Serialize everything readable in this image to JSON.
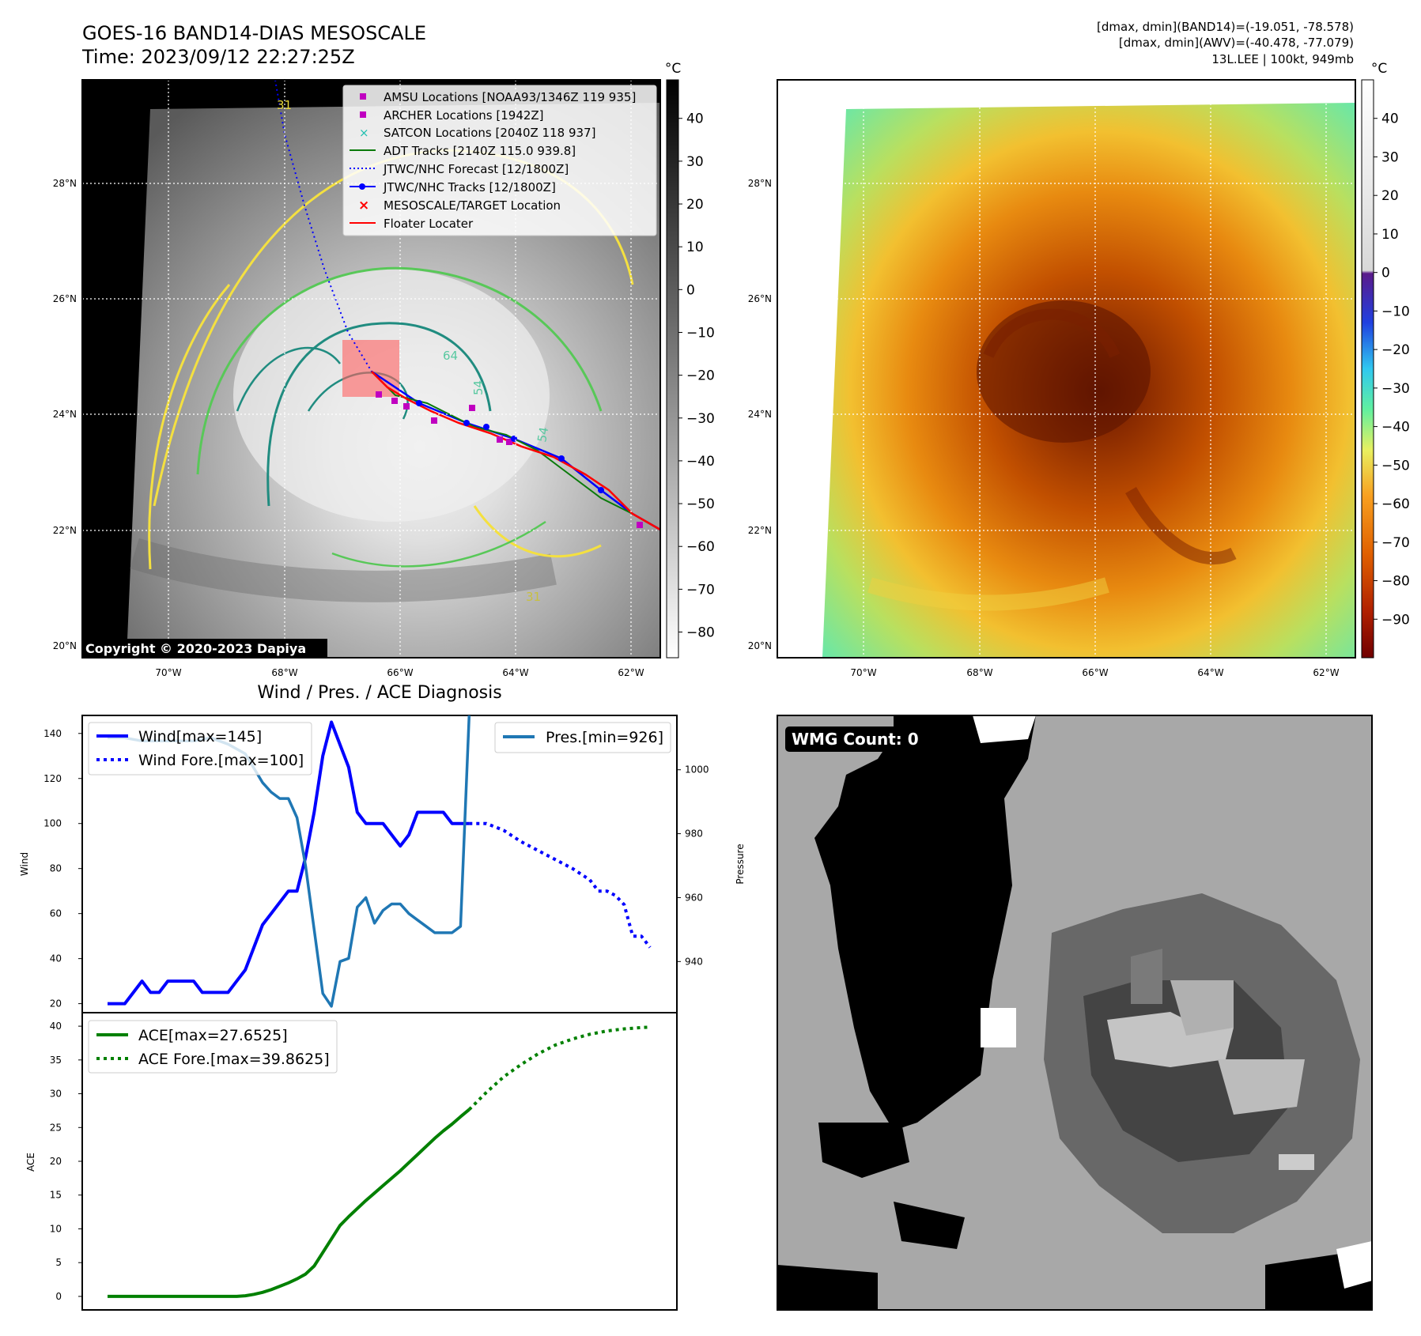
{
  "header": {
    "title": "GOES-16 BAND14-DIAS MESOSCALE",
    "time": "Time: 2023/09/12 22:27:25Z",
    "dm_band": "[dmax, dmin](BAND14)=(-19.051, -78.578)",
    "dm_awv": "[dmax, dmin](AWV)=(-40.478, -77.079)",
    "storm": "13L.LEE | 100kt, 949mb",
    "copyright": "Copyright © 2020-2023 Dapiya"
  },
  "map": {
    "lat_labels": [
      "28°N",
      "26°N",
      "24°N",
      "22°N",
      "20°N"
    ],
    "lon_labels": [
      "70°W",
      "68°W",
      "66°W",
      "64°W",
      "62°W"
    ],
    "contour_labels": [
      "31",
      "54",
      "54",
      "31",
      "64"
    ],
    "legend": [
      {
        "label": "AMSU Locations [NOAA93/1346Z 119 935]",
        "marker": "square",
        "color": "#c000c0"
      },
      {
        "label": "ARCHER Locations [1942Z]",
        "marker": "square",
        "color": "#c000c0"
      },
      {
        "label": "SATCON Locations [2040Z 118 937]",
        "marker": "x",
        "color": "#20c0b0"
      },
      {
        "label": "ADT Tracks [2140Z 115.0 939.8]",
        "marker": "line",
        "color": "#0a7a0a"
      },
      {
        "label": "JTWC/NHC Forecast [12/1800Z]",
        "marker": "dotted",
        "color": "#0000ff"
      },
      {
        "label": "JTWC/NHC Tracks [12/1800Z]",
        "marker": "line-dot",
        "color": "#0000ff"
      },
      {
        "label": "MESOSCALE/TARGET Location",
        "marker": "x",
        "color": "#ff0000"
      },
      {
        "label": "Floater Locater",
        "marker": "line",
        "color": "#ff0000"
      }
    ]
  },
  "colorbars": {
    "unit": "°C",
    "ir_ticks": [
      "40",
      "30",
      "20",
      "10",
      "0",
      "−10",
      "−20",
      "−30",
      "−40",
      "−50",
      "−60",
      "−70",
      "−80"
    ],
    "dias_ticks": [
      "40",
      "30",
      "20",
      "10",
      "0",
      "−10",
      "−20",
      "−30",
      "−40",
      "−50",
      "−60",
      "−70",
      "−80",
      "−90"
    ]
  },
  "diag": {
    "title": "Wind / Pres. / ACE Diagnosis",
    "wind_ylabel": "Wind",
    "pres_ylabel": "Pressure",
    "ace_ylabel": "ACE",
    "wind_ticks": [
      "140",
      "120",
      "100",
      "80",
      "60",
      "40",
      "20"
    ],
    "pres_ticks": [
      "1000",
      "980",
      "960",
      "940"
    ],
    "ace_ticks": [
      "40",
      "35",
      "30",
      "25",
      "20",
      "15",
      "10",
      "5",
      "0"
    ],
    "legend_wind": [
      "Wind[max=145]",
      "Wind Fore.[max=100]"
    ],
    "legend_pres": [
      "Pres.[min=926]"
    ],
    "legend_ace": [
      "ACE[max=27.6525]",
      "ACE Fore.[max=39.8625]"
    ]
  },
  "wmg": {
    "label": "WMG Count: 0"
  },
  "chart_data": [
    {
      "type": "line",
      "title": "Wind / Pres. / ACE Diagnosis",
      "ylabel": "Wind",
      "ylim": [
        16,
        148
      ],
      "series": [
        {
          "name": "Wind[max=145]",
          "color": "#0000ff",
          "style": "solid",
          "x": [
            0,
            1,
            2,
            3,
            4,
            5,
            6,
            7,
            8,
            9,
            10,
            11,
            12,
            13,
            14,
            15,
            16,
            17,
            18,
            19,
            20,
            21,
            22,
            23,
            24,
            25,
            26,
            27,
            28,
            29,
            30,
            31,
            32,
            33,
            34,
            35,
            36,
            37,
            38,
            39,
            40,
            41,
            42
          ],
          "values": [
            20,
            20,
            20,
            25,
            30,
            25,
            25,
            30,
            30,
            30,
            30,
            25,
            25,
            25,
            25,
            30,
            35,
            45,
            55,
            60,
            65,
            70,
            70,
            85,
            105,
            130,
            145,
            135,
            125,
            105,
            100,
            100,
            100,
            95,
            90,
            95,
            105,
            105,
            105,
            105,
            100,
            100,
            100
          ]
        },
        {
          "name": "Wind Fore.[max=100]",
          "color": "#0000ff",
          "style": "dotted",
          "x": [
            42,
            44,
            46,
            48,
            50,
            52,
            54,
            56,
            57,
            58,
            59,
            60,
            61,
            62,
            63
          ],
          "values": [
            100,
            100,
            97,
            92,
            88,
            84,
            80,
            75,
            70,
            70,
            68,
            64,
            50,
            50,
            45
          ]
        }
      ]
    },
    {
      "type": "line",
      "ylabel": "Pressure",
      "ylim": [
        924,
        1017
      ],
      "series": [
        {
          "name": "Pres.[min=926]",
          "color": "#1f77b4",
          "style": "solid",
          "x": [
            0,
            2,
            4,
            6,
            8,
            10,
            12,
            14,
            16,
            18,
            19,
            20,
            21,
            22,
            23,
            24,
            25,
            26,
            27,
            28,
            29,
            30,
            31,
            32,
            33,
            34,
            35,
            36,
            37,
            38,
            39,
            40,
            41,
            42
          ],
          "values": [
            1010,
            1010,
            1009,
            1009,
            1009,
            1009,
            1010,
            1008,
            1005,
            996,
            993,
            991,
            991,
            985,
            970,
            950,
            930,
            926,
            940,
            941,
            957,
            960,
            952,
            956,
            958,
            958,
            955,
            953,
            951,
            949,
            949,
            949,
            951,
            1017
          ]
        }
      ]
    },
    {
      "type": "line",
      "ylabel": "ACE",
      "ylim": [
        -2,
        42
      ],
      "series": [
        {
          "name": "ACE[max=27.6525]",
          "color": "#008000",
          "style": "solid",
          "x": [
            0,
            2,
            4,
            6,
            8,
            10,
            12,
            14,
            15,
            16,
            17,
            18,
            19,
            20,
            21,
            22,
            23,
            24,
            25,
            26,
            27,
            28,
            29,
            30,
            31,
            32,
            33,
            34,
            35,
            36,
            37,
            38,
            39,
            40,
            41,
            42
          ],
          "values": [
            0,
            0,
            0,
            0,
            0,
            0,
            0,
            0,
            0,
            0.1,
            0.3,
            0.6,
            1.0,
            1.5,
            2.0,
            2.6,
            3.3,
            4.5,
            6.5,
            8.5,
            10.5,
            11.8,
            13.0,
            14.2,
            15.3,
            16.4,
            17.5,
            18.6,
            19.8,
            21.0,
            22.2,
            23.4,
            24.5,
            25.5,
            26.6,
            27.65
          ]
        },
        {
          "name": "ACE Fore.[max=39.8625]",
          "color": "#008000",
          "style": "dotted",
          "x": [
            42,
            44,
            46,
            48,
            50,
            52,
            54,
            56,
            58,
            60,
            61,
            62,
            63
          ],
          "values": [
            27.65,
            30.2,
            32.5,
            34.3,
            35.9,
            37.2,
            38.1,
            38.8,
            39.3,
            39.6,
            39.7,
            39.8,
            39.86
          ]
        }
      ]
    }
  ]
}
